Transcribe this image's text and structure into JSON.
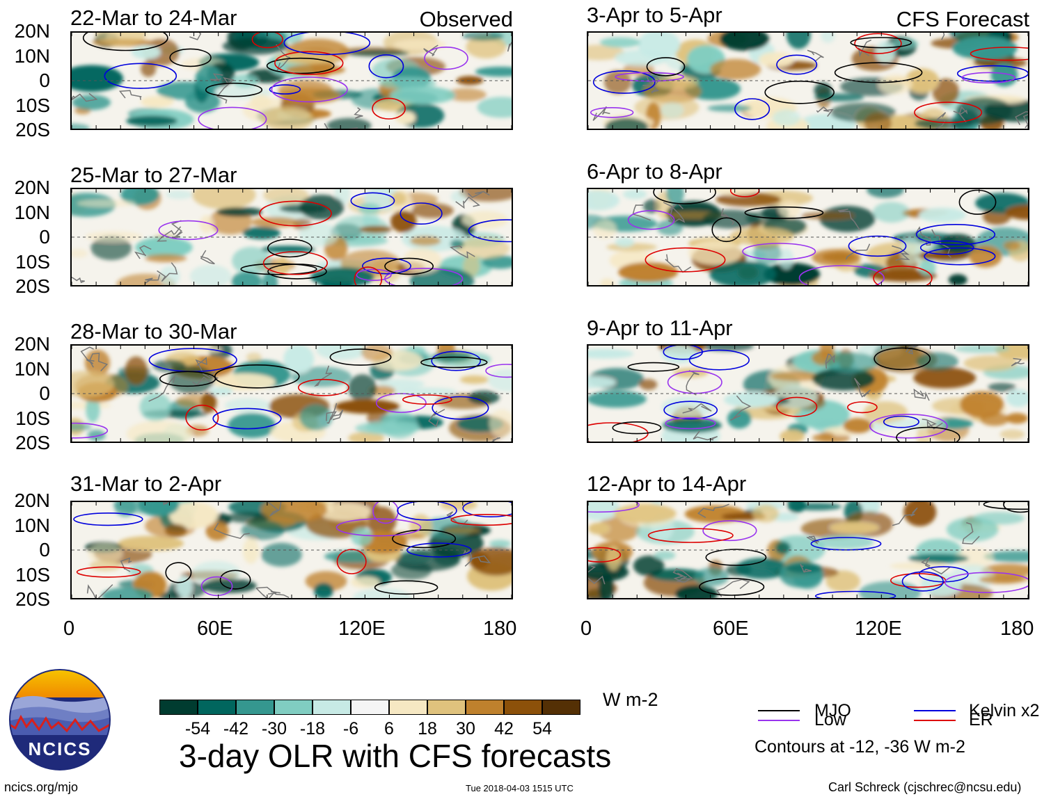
{
  "left_tag": "Observed",
  "right_tag": "CFS Forecast",
  "lat_labels": [
    "20N",
    "10N",
    "0",
    "10S",
    "20S"
  ],
  "lon_labels": [
    "0",
    "60E",
    "120E",
    "180"
  ],
  "panels_left": [
    {
      "title": "22-Mar to 24-Mar"
    },
    {
      "title": "25-Mar to 27-Mar"
    },
    {
      "title": "28-Mar to 30-Mar"
    },
    {
      "title": "31-Mar to 2-Apr"
    }
  ],
  "panels_right": [
    {
      "title": "3-Apr to 5-Apr"
    },
    {
      "title": "6-Apr to 8-Apr"
    },
    {
      "title": "9-Apr to 11-Apr"
    },
    {
      "title": "12-Apr to 14-Apr"
    }
  ],
  "colorbar": {
    "colors": [
      "#003c30",
      "#01665e",
      "#35978f",
      "#80cdc1",
      "#c7eae5",
      "#f5f5f5",
      "#f6e8c3",
      "#dfc27d",
      "#bf812d",
      "#8c510a",
      "#543005"
    ],
    "labels": [
      "-54",
      "-42",
      "-30",
      "-18",
      "-6",
      "6",
      "18",
      "30",
      "42",
      "54"
    ],
    "units": "W m-2"
  },
  "main_title": "3-day OLR with CFS forecasts",
  "legend": {
    "items": [
      {
        "label": "MJO",
        "color": "#000000"
      },
      {
        "label": "Kelvin x2",
        "color": "#0000dd"
      },
      {
        "label": "Low",
        "color": "#9933ee"
      },
      {
        "label": "ER",
        "color": "#dd0000"
      }
    ],
    "contours_note": "Contours at -12, -36 W m-2"
  },
  "logo_text": "NCICS",
  "footer": {
    "url": "ncics.org/mjo",
    "timestamp": "Tue 2018-04-03 1515 UTC",
    "credit": "Carl Schreck (cjschrec@ncsu.edu)"
  }
}
